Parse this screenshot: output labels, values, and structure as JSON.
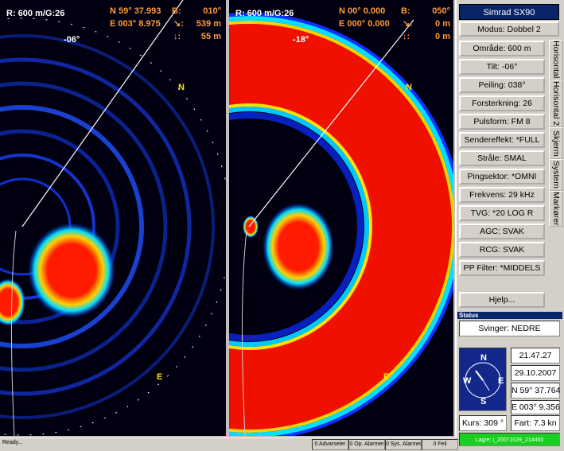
{
  "left_panel": {
    "range_gain": "R: 600 m/G:26",
    "lat": "N  59° 37.993",
    "lon": "E 003° 8.975",
    "bearing_label": "B:",
    "bearing": "010°",
    "range_icon": "↘:",
    "range": "539 m",
    "depth_icon": "↓:",
    "depth": "55 m",
    "tilt": "-06°",
    "ring_labels": [
      "N",
      "E"
    ]
  },
  "right_panel": {
    "range_gain": "R: 600 m/G:26",
    "lat": "N  00° 0.000",
    "lon": "E 000° 0.000",
    "bearing_label": "B:",
    "bearing": "050°",
    "range_icon": "↘:",
    "range": "0 m",
    "depth_icon": "↓:",
    "depth": "0 m",
    "tilt": "-18°",
    "ring_labels": [
      "N",
      "E"
    ]
  },
  "sidebar": {
    "title": "Simrad SX90",
    "mode": "Modus: Dobbel 2",
    "buttons": [
      "Område: 600 m",
      "Tilt: -06°",
      "Peiling: 038°",
      "Forsterkning: 26",
      "Pulsform: FM 8",
      "Sendereffekt: *FULL",
      "Stråle: SMAL",
      "Pingsektor: *OMNI",
      "Frekvens: 29 kHz",
      "TVG: *20 LOG R",
      "AGC: SVAK",
      "RCG: SVAK",
      "PP Filter: *MIDDELS"
    ],
    "help": "Hjelp...",
    "tabs": [
      "Horisontal",
      "Horisontal 2",
      "Skjerm",
      "System",
      "Markører"
    ]
  },
  "status": {
    "header": "Status",
    "transducer": "Svinger: NEDRE",
    "time": "21.47.27",
    "date": "29.10.2007",
    "lat": "N 59° 37.764",
    "lon": "E 003° 9.356",
    "course": "Kurs: 309 °",
    "speed": "Fart: 7.3 kn",
    "compass": [
      "N",
      "E",
      "S",
      "W"
    ],
    "record": "Lagre: i_20071029_214455"
  },
  "statusbar": {
    "ready": "Ready...",
    "counters": [
      "0 Advarseler",
      "0 Op. Alarmer",
      "0 Sys. Alarmer",
      "0 Feil"
    ]
  }
}
